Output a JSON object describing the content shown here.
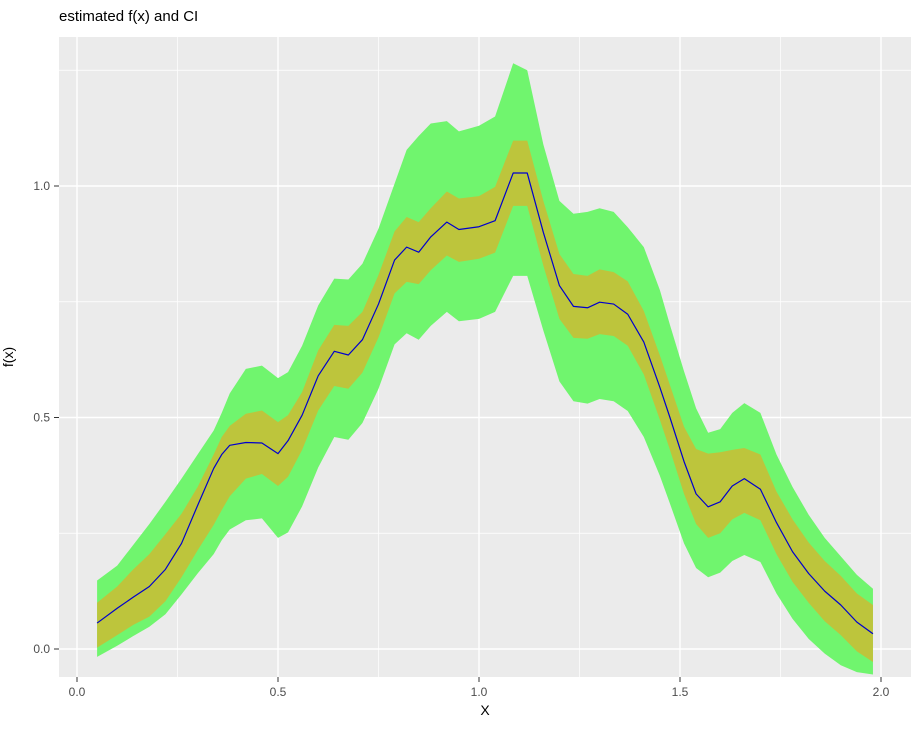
{
  "title": "estimated f(x) and CI",
  "axes": {
    "x": {
      "label": "X",
      "tick_labels": [
        "0.0",
        "0.5",
        "1.0",
        "1.5",
        "2.0"
      ],
      "tick_values": [
        0.0,
        0.5,
        1.0,
        1.5,
        2.0
      ],
      "minor_values": [
        0.25,
        0.75,
        1.25,
        1.75
      ],
      "range": [
        -0.045,
        2.075
      ]
    },
    "y": {
      "label": "f(x)",
      "tick_labels": [
        "0.0",
        "0.5",
        "1.0"
      ],
      "tick_values": [
        0.0,
        0.5,
        1.0
      ],
      "minor_values": [
        0.25,
        0.75,
        1.25
      ],
      "range": [
        -0.06,
        1.322
      ]
    }
  },
  "colors": {
    "panel_background": "#EBEBEB",
    "gridline": "#FFFFFF",
    "outer_band": "#70F56E",
    "inner_band": "#BDC53C",
    "line": "#0000CD",
    "tick_mark": "#333333",
    "tick_label": "#4D4D4D",
    "title_text": "#000000"
  },
  "chart_data": {
    "type": "line",
    "title": "estimated f(x) and CI",
    "xlabel": "X",
    "ylabel": "f(x)",
    "xlim": [
      -0.045,
      2.075
    ],
    "ylim": [
      -0.06,
      1.322
    ],
    "grid": true,
    "legend": "none",
    "x": [
      0.05,
      0.1,
      0.14,
      0.18,
      0.22,
      0.26,
      0.3,
      0.34,
      0.36,
      0.38,
      0.42,
      0.46,
      0.5,
      0.525,
      0.56,
      0.6,
      0.64,
      0.675,
      0.71,
      0.75,
      0.79,
      0.82,
      0.85,
      0.88,
      0.92,
      0.95,
      1.0,
      1.04,
      1.085,
      1.12,
      1.16,
      1.2,
      1.235,
      1.27,
      1.3,
      1.335,
      1.37,
      1.41,
      1.45,
      1.475,
      1.51,
      1.54,
      1.57,
      1.6,
      1.63,
      1.66,
      1.7,
      1.74,
      1.78,
      1.82,
      1.86,
      1.9,
      1.94,
      1.98
    ],
    "series": [
      {
        "name": "outer CI band",
        "role": "band",
        "color": "#70F56E",
        "upper": [
          0.148,
          0.18,
          0.225,
          0.27,
          0.318,
          0.368,
          0.42,
          0.472,
          0.51,
          0.552,
          0.605,
          0.612,
          0.585,
          0.598,
          0.655,
          0.742,
          0.8,
          0.798,
          0.832,
          0.908,
          1.005,
          1.078,
          1.108,
          1.135,
          1.14,
          1.118,
          1.13,
          1.15,
          1.265,
          1.25,
          1.09,
          0.968,
          0.94,
          0.944,
          0.952,
          0.944,
          0.911,
          0.868,
          0.775,
          0.7,
          0.6,
          0.52,
          0.467,
          0.475,
          0.51,
          0.531,
          0.51,
          0.42,
          0.35,
          0.29,
          0.24,
          0.2,
          0.16,
          0.13
        ],
        "lower": [
          -0.017,
          0.007,
          0.028,
          0.048,
          0.075,
          0.118,
          0.163,
          0.205,
          0.235,
          0.258,
          0.278,
          0.282,
          0.24,
          0.252,
          0.308,
          0.392,
          0.458,
          0.452,
          0.488,
          0.562,
          0.658,
          0.682,
          0.668,
          0.698,
          0.728,
          0.708,
          0.713,
          0.728,
          0.806,
          0.806,
          0.688,
          0.578,
          0.535,
          0.53,
          0.54,
          0.535,
          0.514,
          0.458,
          0.374,
          0.314,
          0.228,
          0.175,
          0.155,
          0.165,
          0.19,
          0.203,
          0.188,
          0.12,
          0.065,
          0.022,
          -0.01,
          -0.035,
          -0.05,
          -0.055
        ]
      },
      {
        "name": "inner CI band",
        "role": "band",
        "color": "#BDC53C",
        "upper": [
          0.1,
          0.135,
          0.172,
          0.205,
          0.248,
          0.292,
          0.35,
          0.42,
          0.458,
          0.482,
          0.508,
          0.515,
          0.49,
          0.505,
          0.555,
          0.645,
          0.7,
          0.698,
          0.728,
          0.808,
          0.902,
          0.933,
          0.922,
          0.952,
          0.988,
          0.973,
          0.978,
          0.998,
          1.098,
          1.098,
          0.968,
          0.853,
          0.81,
          0.806,
          0.82,
          0.814,
          0.794,
          0.73,
          0.634,
          0.57,
          0.48,
          0.432,
          0.422,
          0.425,
          0.43,
          0.434,
          0.42,
          0.34,
          0.28,
          0.23,
          0.19,
          0.158,
          0.12,
          0.095
        ],
        "lower": [
          0.003,
          0.03,
          0.052,
          0.07,
          0.103,
          0.155,
          0.213,
          0.268,
          0.3,
          0.33,
          0.368,
          0.378,
          0.352,
          0.372,
          0.43,
          0.515,
          0.568,
          0.562,
          0.597,
          0.673,
          0.768,
          0.793,
          0.788,
          0.818,
          0.85,
          0.836,
          0.843,
          0.856,
          0.957,
          0.957,
          0.828,
          0.713,
          0.672,
          0.67,
          0.68,
          0.676,
          0.655,
          0.593,
          0.495,
          0.43,
          0.335,
          0.27,
          0.24,
          0.25,
          0.28,
          0.294,
          0.278,
          0.205,
          0.145,
          0.1,
          0.06,
          0.03,
          -0.005,
          -0.028
        ]
      },
      {
        "name": "estimated f(x)",
        "role": "line",
        "color": "#0000CD",
        "values": [
          0.056,
          0.088,
          0.112,
          0.135,
          0.172,
          0.228,
          0.31,
          0.39,
          0.42,
          0.44,
          0.446,
          0.445,
          0.422,
          0.45,
          0.505,
          0.59,
          0.643,
          0.635,
          0.668,
          0.745,
          0.84,
          0.868,
          0.857,
          0.89,
          0.922,
          0.906,
          0.912,
          0.925,
          1.028,
          1.028,
          0.9,
          0.785,
          0.74,
          0.737,
          0.749,
          0.745,
          0.723,
          0.663,
          0.565,
          0.5,
          0.405,
          0.335,
          0.307,
          0.318,
          0.352,
          0.368,
          0.345,
          0.273,
          0.21,
          0.163,
          0.125,
          0.095,
          0.058,
          0.033
        ]
      }
    ]
  }
}
